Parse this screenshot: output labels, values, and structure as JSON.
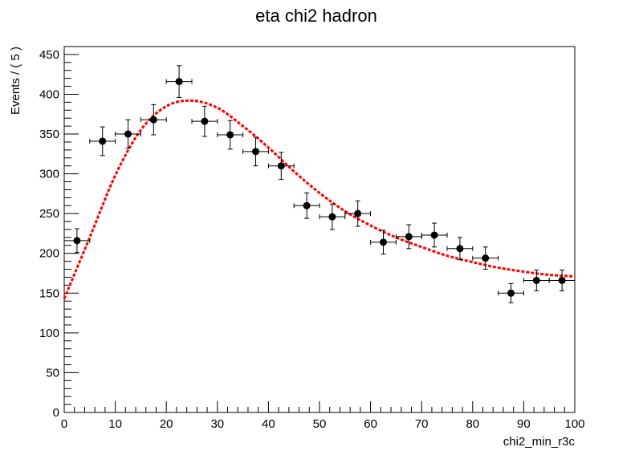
{
  "chart_data": {
    "type": "scatter",
    "title": "eta chi2 hadron",
    "xlabel": "chi2_min_r3c",
    "ylabel": "Events / ( 5 )",
    "xlim": [
      0,
      100
    ],
    "ylim": [
      0,
      460
    ],
    "x_major_ticks": [
      0,
      10,
      20,
      30,
      40,
      50,
      60,
      70,
      80,
      90,
      100
    ],
    "y_major_ticks": [
      0,
      50,
      100,
      150,
      200,
      250,
      300,
      350,
      400,
      450
    ],
    "grid": false,
    "legend": "none",
    "bin_width": 5,
    "series": [
      {
        "type": "errorbar",
        "color": "#000000",
        "x": [
          2.5,
          7.5,
          12.5,
          17.5,
          22.5,
          27.5,
          32.5,
          37.5,
          42.5,
          47.5,
          52.5,
          57.5,
          62.5,
          67.5,
          72.5,
          77.5,
          82.5,
          87.5,
          92.5,
          97.5
        ],
        "y": [
          216,
          341,
          350,
          368,
          416,
          366,
          349,
          328,
          310,
          260,
          246,
          250,
          214,
          221,
          223,
          206,
          194,
          150,
          166,
          166
        ],
        "yerr": [
          15,
          18,
          18,
          19,
          20,
          19,
          18,
          18,
          17,
          16,
          16,
          16,
          15,
          15,
          15,
          14,
          14,
          12,
          13,
          13
        ]
      },
      {
        "type": "curve",
        "color": "#ff0000",
        "x": [
          0,
          5,
          10,
          15,
          20,
          25,
          30,
          35,
          40,
          45,
          50,
          55,
          60,
          65,
          70,
          75,
          80,
          85,
          90,
          95,
          100
        ],
        "y": [
          143,
          220,
          298,
          355,
          385,
          392,
          383,
          360,
          333,
          303,
          276,
          253,
          235,
          220,
          208,
          197,
          189,
          182,
          177,
          173,
          171
        ]
      }
    ]
  }
}
